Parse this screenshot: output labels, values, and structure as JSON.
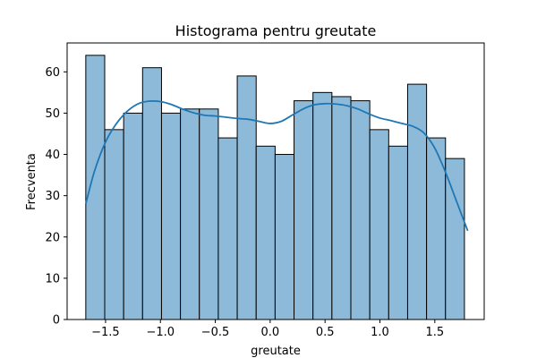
{
  "chart_data": {
    "type": "bar",
    "title": "Histograma pentru greutate",
    "xlabel": "greutate",
    "ylabel": "Frecventa",
    "xlim": [
      -1.85,
      1.95
    ],
    "ylim": [
      0,
      67
    ],
    "xticks": [
      -1.5,
      -1.0,
      -0.5,
      0.0,
      0.5,
      1.0,
      1.5
    ],
    "xtick_labels": [
      "−1.5",
      "−1.0",
      "−0.5",
      "0.0",
      "0.5",
      "1.0",
      "1.5"
    ],
    "yticks": [
      0,
      10,
      20,
      30,
      40,
      50,
      60
    ],
    "ytick_labels": [
      "0",
      "10",
      "20",
      "30",
      "40",
      "50",
      "60"
    ],
    "bins_start": -1.68,
    "bin_width": 0.1725,
    "values": [
      64,
      46,
      50,
      61,
      50,
      51,
      51,
      44,
      59,
      42,
      40,
      53,
      55,
      54,
      53,
      46,
      42,
      57,
      44,
      39
    ],
    "bar_color": "#8ebad9",
    "bar_edge_color": "#000000",
    "kde": {
      "color": "#1f77b4",
      "x": [
        -1.68,
        -1.6,
        -1.5,
        -1.4,
        -1.3,
        -1.2,
        -1.1,
        -1.0,
        -0.9,
        -0.8,
        -0.7,
        -0.6,
        -0.5,
        -0.4,
        -0.3,
        -0.2,
        -0.1,
        0.0,
        0.1,
        0.2,
        0.3,
        0.4,
        0.5,
        0.6,
        0.7,
        0.8,
        0.9,
        1.0,
        1.1,
        1.2,
        1.3,
        1.4,
        1.5,
        1.6,
        1.7,
        1.8
      ],
      "y": [
        28,
        36,
        43,
        47.5,
        50.5,
        52.3,
        52.9,
        52.8,
        52.1,
        51.0,
        50.1,
        49.5,
        49.3,
        49.0,
        48.7,
        48.5,
        48.0,
        47.5,
        48.0,
        49.5,
        51.0,
        52.0,
        52.3,
        52.2,
        51.8,
        51.0,
        49.8,
        48.8,
        48.2,
        47.5,
        46.8,
        45.2,
        41.5,
        35.5,
        28.5,
        21.5
      ]
    },
    "grid": false
  }
}
